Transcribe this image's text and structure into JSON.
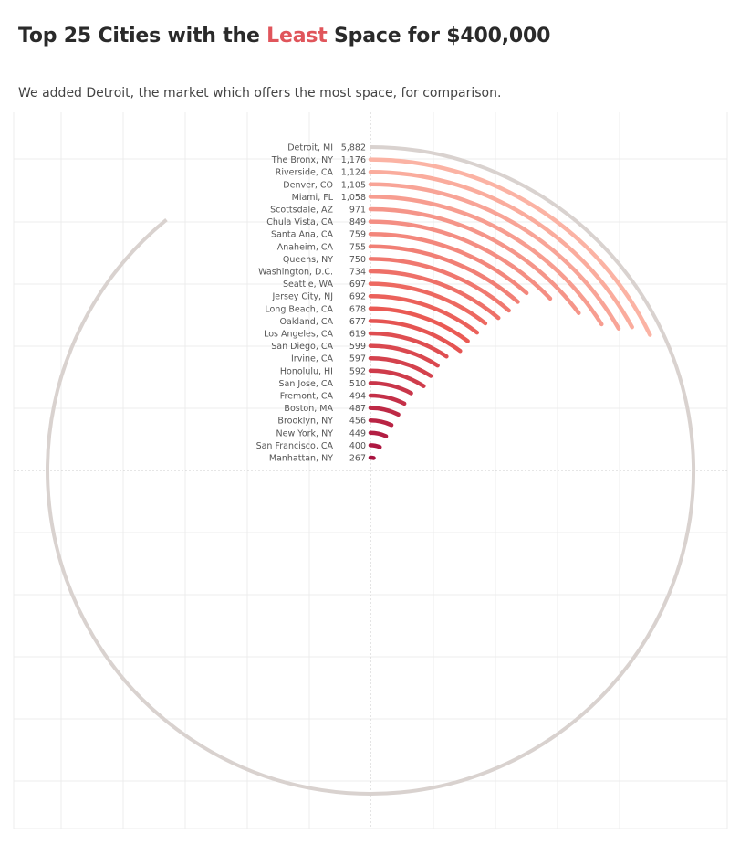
{
  "header": {
    "title_before": "Top 25 Cities with the ",
    "title_highlight": "Least",
    "title_after": " Space for $400,000",
    "subtitle": "We added Detroit, the market which offers the most space, for comparison."
  },
  "colors": {
    "title_highlight": "#e0555b",
    "reference_arc": "#d9d2cf",
    "scale_light": "#fbb3a4",
    "scale_mid": "#ea5a54",
    "scale_dark": "#a8123f",
    "grid": "#ececec",
    "axis_dash": "#bdbdbd"
  },
  "chart_data": {
    "type": "radial-bar",
    "title": "Top 25 Cities with the Least Space for $400,000",
    "subtitle": "We added Detroit, the market which offers the most space, for comparison.",
    "arc_full_value": 6600,
    "grid": true,
    "categories": [
      "Detroit, MI",
      "The Bronx, NY",
      "Riverside, CA",
      "Denver, CO",
      "Miami, FL",
      "Scottsdale, AZ",
      "Chula Vista, CA",
      "Santa Ana, CA",
      "Anaheim, CA",
      "Queens, NY",
      "Washington, D.C.",
      "Seattle, WA",
      "Jersey City, NJ",
      "Long Beach, CA",
      "Oakland, CA",
      "Los Angeles, CA",
      "San Diego, CA",
      "Irvine, CA",
      "Honolulu, HI",
      "San Jose, CA",
      "Fremont, CA",
      "Boston, MA",
      "Brooklyn, NY",
      "New York, NY",
      "San Francisco, CA",
      "Manhattan, NY"
    ],
    "values": [
      5882,
      1176,
      1124,
      1105,
      1058,
      971,
      849,
      759,
      755,
      750,
      734,
      697,
      692,
      678,
      677,
      619,
      599,
      597,
      592,
      510,
      494,
      487,
      456,
      449,
      400,
      267
    ],
    "value_labels": [
      "5,882",
      "1,176",
      "1,124",
      "1,105",
      "1,058",
      "971",
      "849",
      "759",
      "755",
      "750",
      "734",
      "697",
      "692",
      "678",
      "677",
      "619",
      "599",
      "597",
      "592",
      "510",
      "494",
      "487",
      "456",
      "449",
      "400",
      "267"
    ]
  }
}
